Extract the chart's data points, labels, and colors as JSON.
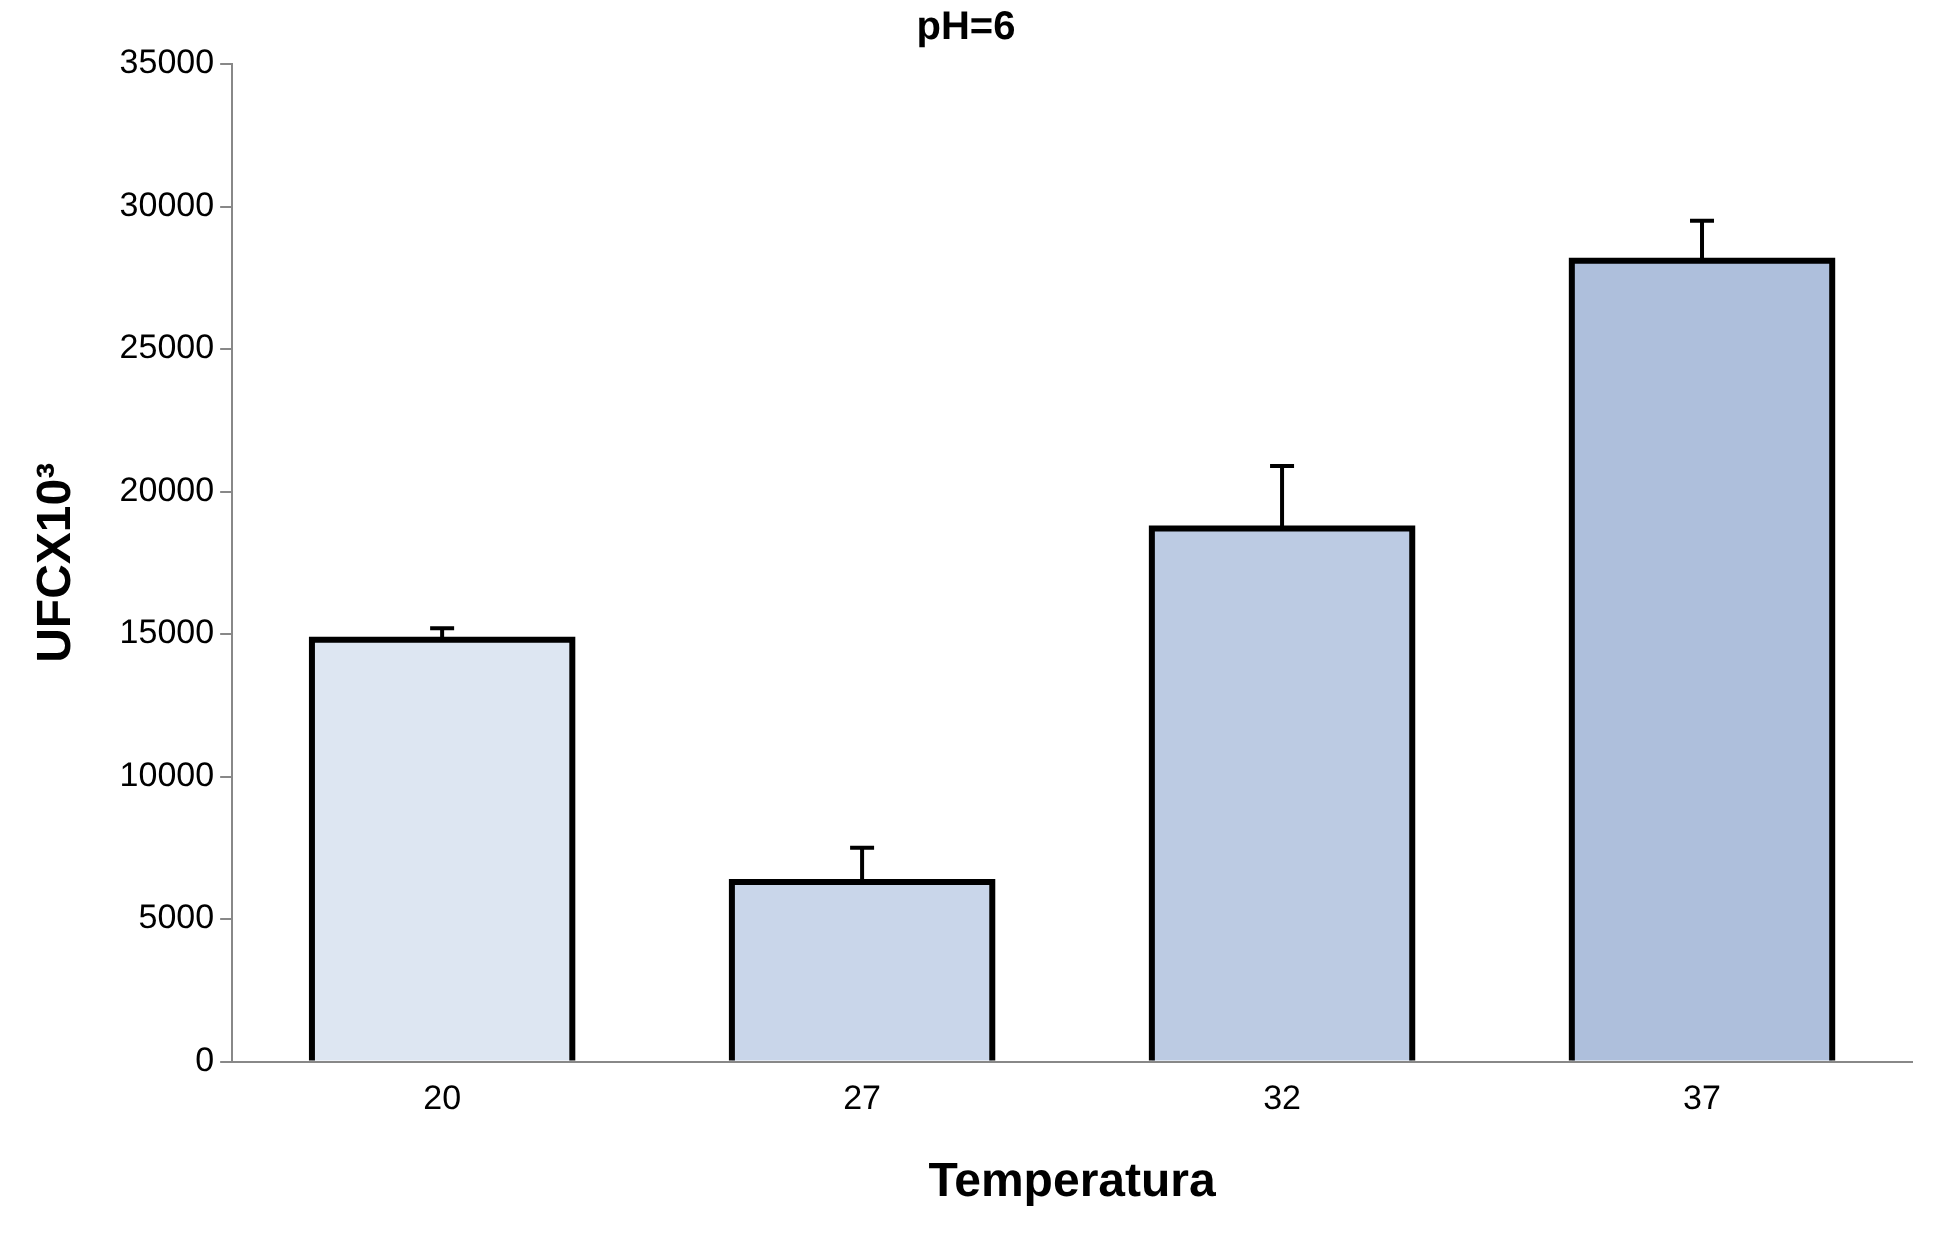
{
  "chart_data": {
    "type": "bar",
    "title": "pH=6",
    "xlabel": "Temperatura",
    "ylabel": "UFCX10³",
    "categories": [
      "20",
      "27",
      "32",
      "37"
    ],
    "values": [
      14800,
      6300,
      18700,
      28100
    ],
    "errors": [
      [
        14800,
        15200
      ],
      [
        6300,
        7500
      ],
      [
        18700,
        20900
      ],
      [
        28100,
        29500
      ]
    ],
    "colors": [
      "#dde6f2",
      "#c9d6ea",
      "#bccbe3",
      "#aebfdc"
    ],
    "ylim": [
      0,
      35000
    ],
    "yticks": [
      0,
      5000,
      10000,
      15000,
      20000,
      25000,
      30000,
      35000
    ],
    "grid": false,
    "legend": false
  }
}
